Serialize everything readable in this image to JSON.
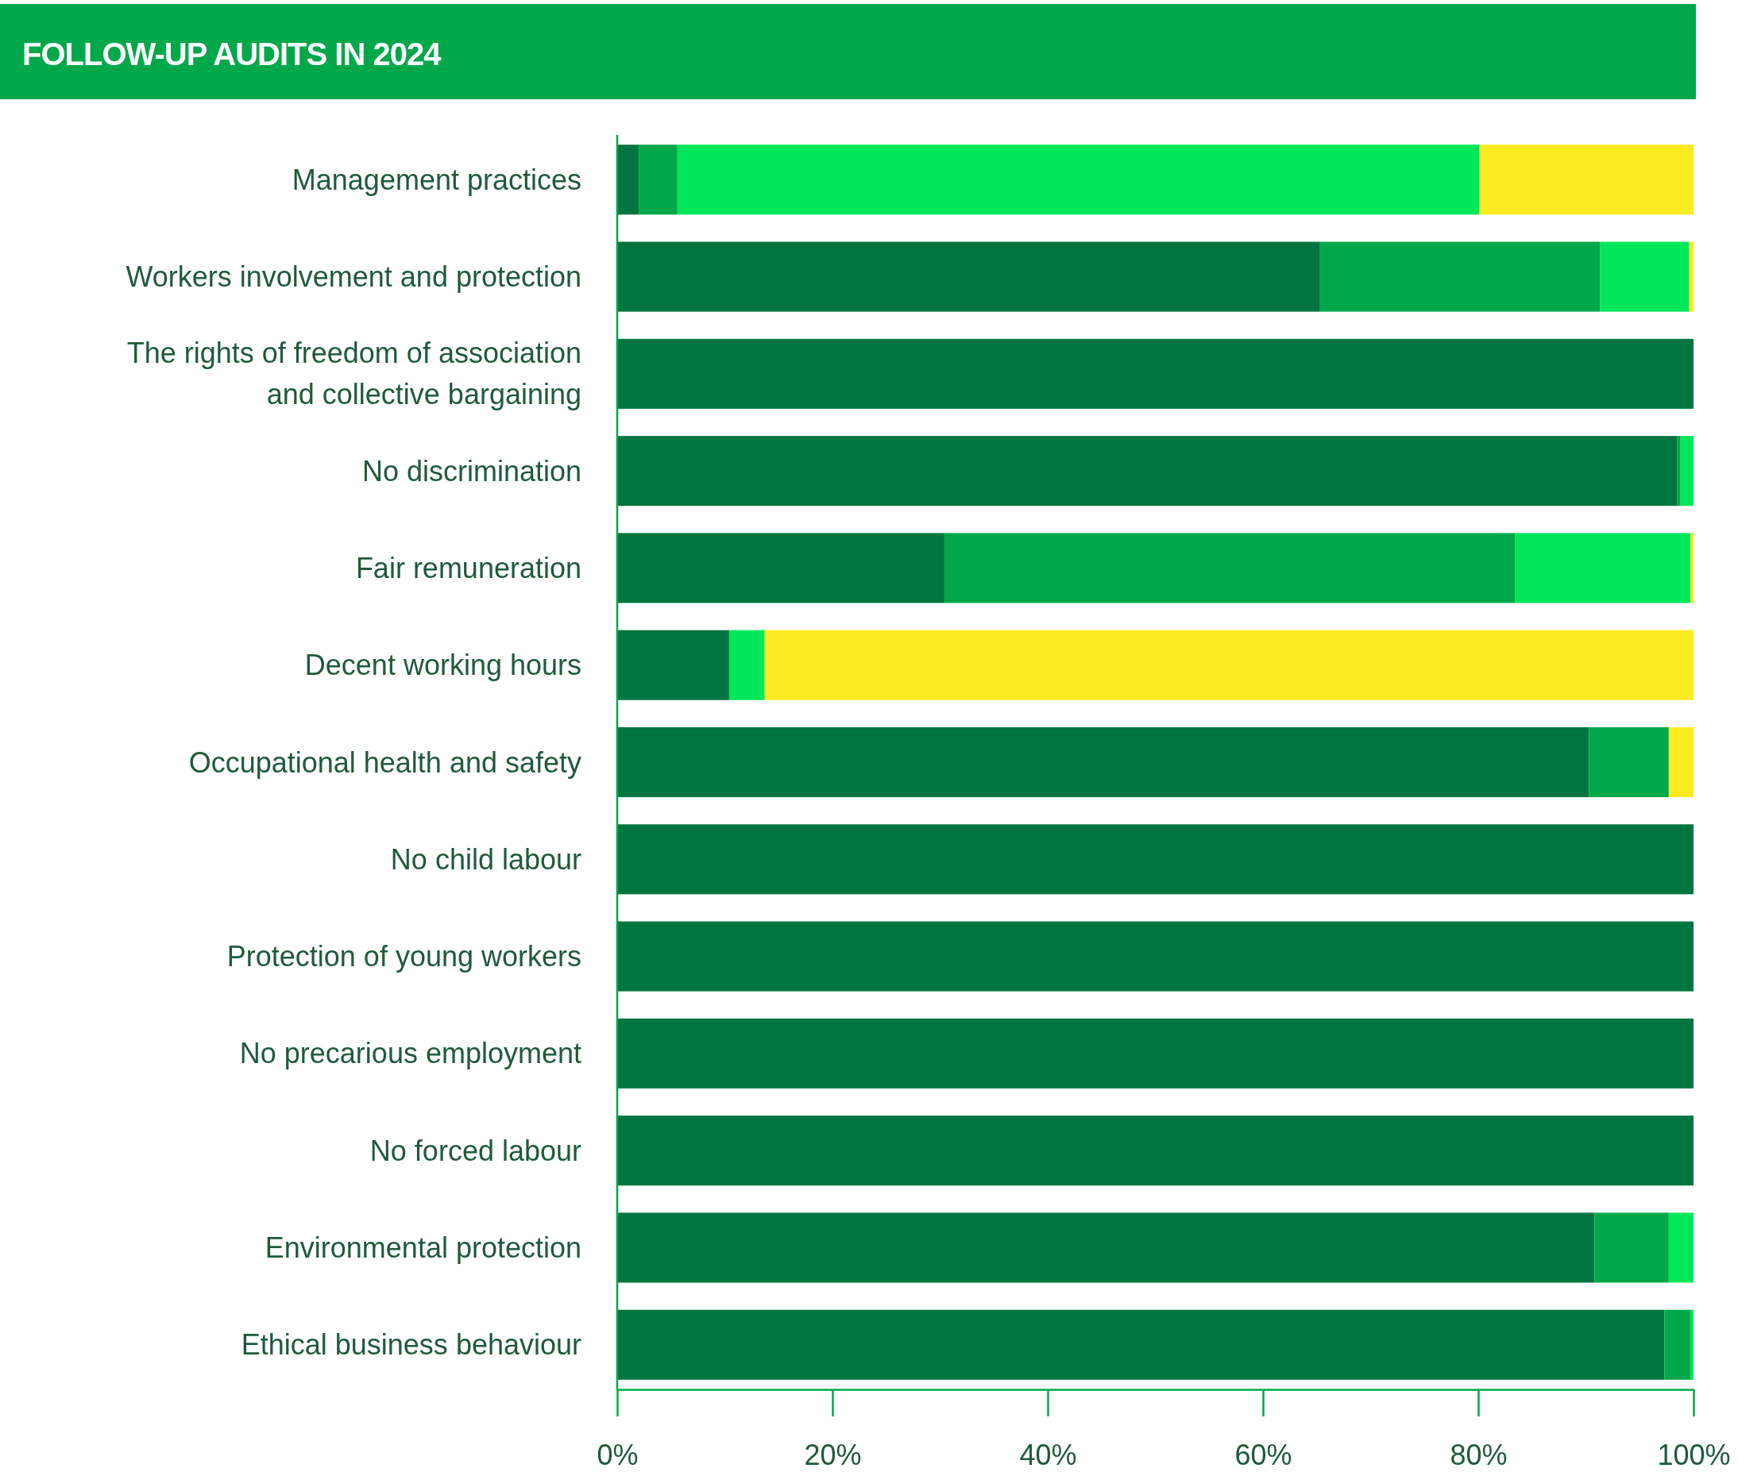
{
  "chart_data": {
    "type": "bar",
    "title": "FOLLOW-UP AUDITS IN 2024",
    "orientation": "horizontal",
    "stacked": true,
    "categories": [
      "Management practices",
      "Workers involvement and protection",
      "The rights of freedom of association and collective bargaining",
      "No discrimination",
      "Fair remuneration",
      "Decent working hours",
      "Occupational health and safety",
      "No child labour",
      "Protection of young workers",
      "No precarious employment",
      "No forced labour",
      "Environmental protection",
      "Ethical business behaviour"
    ],
    "series": [
      {
        "color": "#00753f",
        "values": [
          2,
          65.3,
          100,
          98.5,
          30.4,
          10.4,
          90.3,
          100,
          100,
          100,
          100,
          90.8,
          97.3
        ]
      },
      {
        "color": "#00a84a",
        "values": [
          3.6,
          26,
          0,
          0.3,
          53,
          0,
          7.4,
          0,
          0,
          0,
          0,
          6.9,
          2.4
        ]
      },
      {
        "color": "#00e85a",
        "values": [
          74.5,
          8.3,
          0,
          1.2,
          16.3,
          3.3,
          0,
          0,
          0,
          0,
          0,
          2.3,
          0.3
        ]
      },
      {
        "color": "#fbec22",
        "values": [
          19.9,
          0.4,
          0,
          0,
          0.3,
          86.3,
          2.3,
          0,
          0,
          0,
          0,
          0,
          0
        ]
      }
    ],
    "xlim": [
      0,
      100
    ],
    "xticks": [
      {
        "value": 0,
        "label": "0%"
      },
      {
        "value": 20,
        "label": "20%"
      },
      {
        "value": 40,
        "label": "40%"
      },
      {
        "value": 60,
        "label": "60%"
      },
      {
        "value": 80,
        "label": "80%"
      },
      {
        "value": 100,
        "label": "100%"
      }
    ],
    "grid": false
  }
}
